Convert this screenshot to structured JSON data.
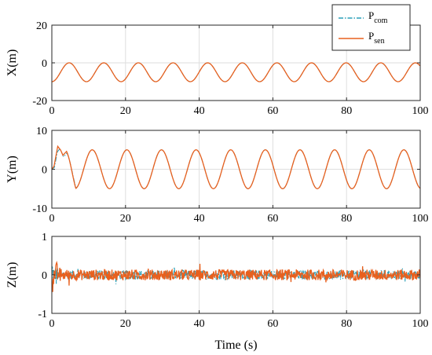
{
  "chart_data": [
    {
      "type": "line",
      "ylabel": "X(m)",
      "xlabel": "",
      "xlim": [
        0,
        100
      ],
      "ylim": [
        -20,
        20
      ],
      "xticks": [
        0,
        20,
        40,
        60,
        80,
        100
      ],
      "yticks": [
        -20,
        0,
        20
      ],
      "grid": true,
      "legend": "top-right",
      "series": [
        {
          "name": "P",
          "sub": "com",
          "color": "#2a9fb8",
          "style": "dash-dot",
          "signal": {
            "kind": "sine",
            "offset": -5,
            "amplitude": 5,
            "period": 9.4,
            "phase_deg": 90
          }
        },
        {
          "name": "P",
          "sub": "sen",
          "color": "#e8601e",
          "style": "solid",
          "signal": {
            "kind": "sine",
            "offset": -5,
            "amplitude": 5,
            "period": 9.4,
            "phase_deg": 90
          }
        }
      ]
    },
    {
      "type": "line",
      "ylabel": "Y(m)",
      "xlabel": "",
      "xlim": [
        0,
        100
      ],
      "ylim": [
        -10,
        10
      ],
      "xticks": [
        0,
        20,
        40,
        60,
        80,
        100
      ],
      "yticks": [
        -10,
        0,
        10
      ],
      "grid": true,
      "series": [
        {
          "name": "P",
          "sub": "com",
          "color": "#2a9fb8",
          "style": "dash-dot",
          "signal": {
            "kind": "sine",
            "offset": 0,
            "amplitude": 5,
            "period": 9.4,
            "phase_deg": -30,
            "start": [
              [
                0,
                0
              ],
              [
                0.7,
                0.5
              ],
              [
                1.5,
                4.5
              ],
              [
                2.2,
                5.3
              ],
              [
                3.2,
                3.2
              ],
              [
                4.1,
                4.2
              ]
            ]
          }
        },
        {
          "name": "P",
          "sub": "sen",
          "color": "#e8601e",
          "style": "solid",
          "signal": {
            "kind": "sine",
            "offset": 0,
            "amplitude": 5,
            "period": 9.4,
            "phase_deg": -30,
            "start": [
              [
                0,
                0
              ],
              [
                0.6,
                0.8
              ],
              [
                1.6,
                5.9
              ],
              [
                2.4,
                4.9
              ],
              [
                3.0,
                3.6
              ],
              [
                4.0,
                4.6
              ]
            ]
          }
        }
      ]
    },
    {
      "type": "line",
      "ylabel": "Z(m)",
      "xlabel": "Time (s)",
      "xlim": [
        0,
        100
      ],
      "ylim": [
        -1,
        1
      ],
      "xticks": [
        0,
        20,
        40,
        60,
        80,
        100
      ],
      "yticks": [
        -1,
        0,
        1
      ],
      "grid": true,
      "series": [
        {
          "name": "P",
          "sub": "com",
          "color": "#2a9fb8",
          "style": "dash-dot",
          "signal": {
            "kind": "noise",
            "offset": 0.0,
            "amplitude": 0.12,
            "initial_amplitude": 0.45,
            "decay_until": 3
          }
        },
        {
          "name": "P",
          "sub": "sen",
          "color": "#e8601e",
          "style": "solid",
          "signal": {
            "kind": "noise",
            "offset": 0.0,
            "amplitude": 0.14,
            "initial_amplitude": 0.5,
            "decay_until": 3
          }
        }
      ]
    }
  ]
}
